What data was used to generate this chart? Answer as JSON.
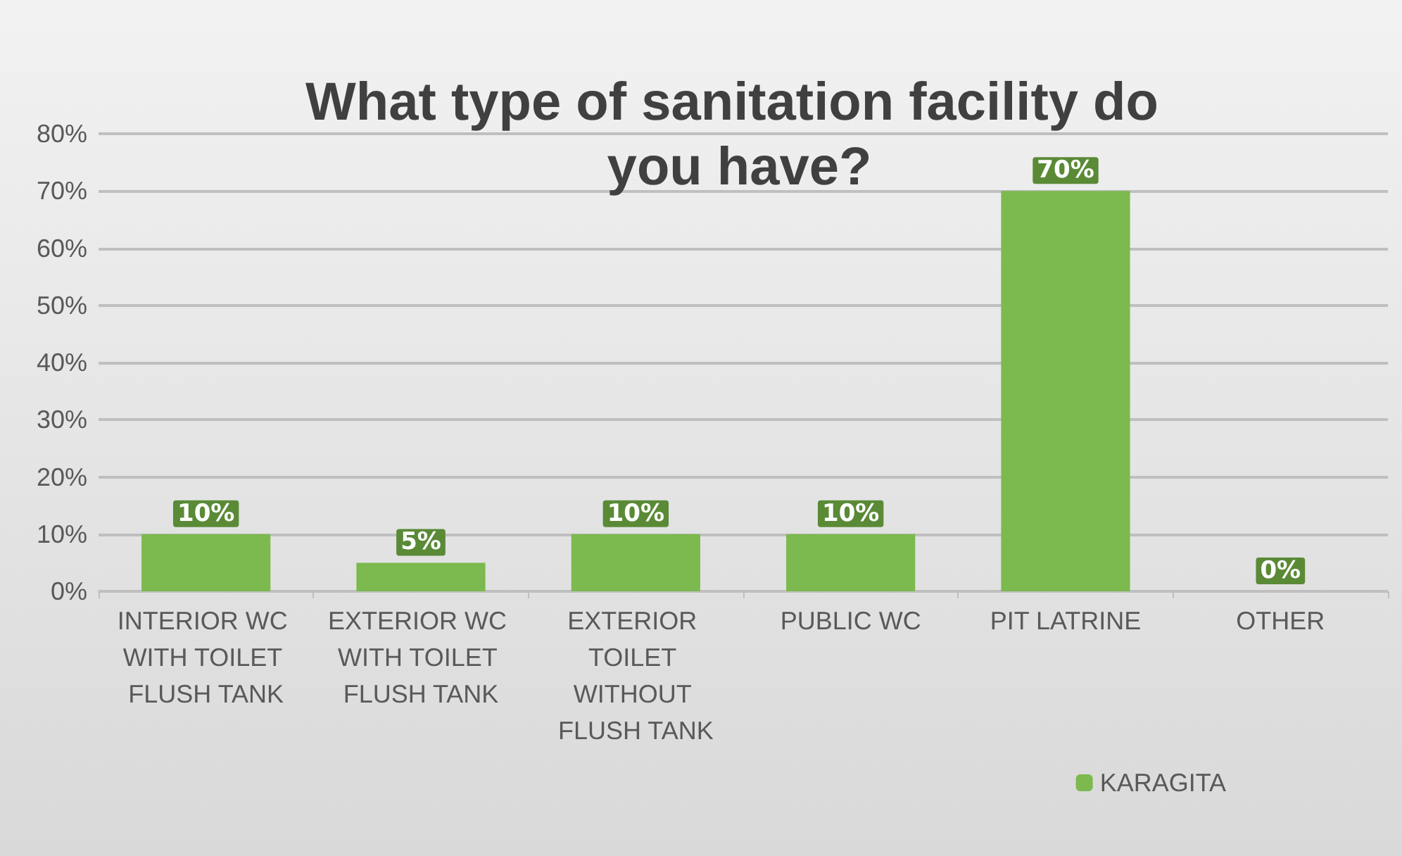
{
  "chart_data": {
    "type": "bar",
    "title": "What type of sanitation facility do you have?",
    "categories": [
      "INTERIOR WC WITH TOILET FLUSH TANK",
      "EXTERIOR WC WITH TOILET FLUSH TANK",
      "EXTERIOR TOILET WITHOUT FLUSH TANK",
      "PUBLIC WC",
      "PIT LATRINE",
      "OTHER"
    ],
    "series": [
      {
        "name": "KARAGITA",
        "color": "#7cb94e",
        "values": [
          10,
          5,
          10,
          10,
          70,
          0
        ],
        "value_labels": [
          "10%",
          "5%",
          "10%",
          "10%",
          "70%",
          "0%"
        ]
      }
    ],
    "ylim": [
      0,
      80
    ],
    "yticks": [
      {
        "value": 0,
        "label": "0%"
      },
      {
        "value": 10,
        "label": "10%"
      },
      {
        "value": 20,
        "label": "20%"
      },
      {
        "value": 30,
        "label": "30%"
      },
      {
        "value": 40,
        "label": "40%"
      },
      {
        "value": 50,
        "label": "50%"
      },
      {
        "value": 60,
        "label": "60%"
      },
      {
        "value": 70,
        "label": "70%"
      },
      {
        "value": 80,
        "label": "80%"
      }
    ],
    "grid": "y",
    "legend": "bottom right"
  }
}
